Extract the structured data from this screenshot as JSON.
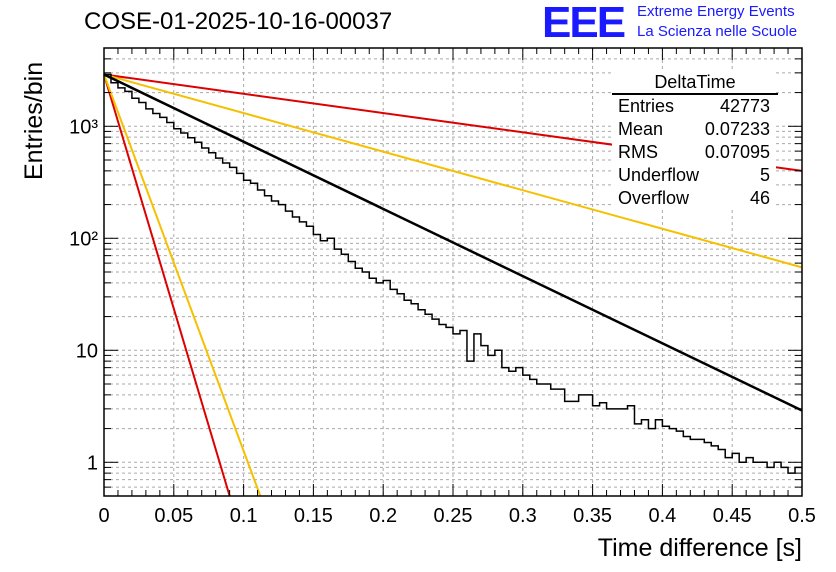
{
  "header": {
    "run_title": "COSE-01-2025-10-16-00037",
    "logo_text": "EEE",
    "logo_line1": "Extreme Energy Events",
    "logo_line2": "La Scienza nelle Scuole"
  },
  "stats_box": {
    "title": "DeltaTime",
    "rows": [
      {
        "label": "Entries",
        "value": "42773"
      },
      {
        "label": "Mean",
        "value": "0.07233"
      },
      {
        "label": "RMS",
        "value": "0.07095"
      },
      {
        "label": "Underflow",
        "value": "5"
      },
      {
        "label": "Overflow",
        "value": "46"
      }
    ]
  },
  "colors": {
    "histogram": "#000000",
    "fit": "#000000",
    "red_curve": "#dd0000",
    "orange_curve": "#f5c000",
    "grid": "#aaaaaa"
  },
  "chart_data": {
    "type": "line",
    "title": "COSE-01-2025-10-16-00037",
    "xlabel": "Time difference [s]",
    "ylabel": "Entries/bin",
    "xlim": [
      0,
      0.5
    ],
    "ylim": [
      0.5,
      5000
    ],
    "yscale": "log",
    "grid": true,
    "x_ticks": [
      0,
      0.05,
      0.1,
      0.15,
      0.2,
      0.25,
      0.3,
      0.35,
      0.4,
      0.45,
      0.5
    ],
    "x_tick_labels": [
      "0",
      "0.05",
      "0.1",
      "0.15",
      "0.2",
      "0.25",
      "0.3",
      "0.35",
      "0.4",
      "0.45",
      "0.5"
    ],
    "y_tick_labels": [
      {
        "value": 1,
        "label": "1"
      },
      {
        "value": 10,
        "label": "10"
      },
      {
        "value": 100,
        "label": "10²"
      },
      {
        "value": 1000,
        "label": "10³"
      }
    ],
    "histogram": {
      "name": "DeltaTime",
      "bin_width": 0.005,
      "counts": [
        2900,
        2450,
        2200,
        2050,
        1780,
        1630,
        1430,
        1300,
        1200,
        1080,
        950,
        870,
        790,
        720,
        640,
        580,
        520,
        470,
        430,
        380,
        330,
        310,
        270,
        240,
        215,
        200,
        175,
        155,
        140,
        128,
        108,
        95,
        100,
        80,
        72,
        62,
        54,
        50,
        44,
        40,
        42,
        35,
        32,
        28,
        26,
        23,
        21,
        19,
        17,
        16,
        14,
        15,
        8,
        14,
        11,
        9,
        10,
        7,
        6.5,
        7,
        6,
        5.5,
        5,
        5,
        4.5,
        4.5,
        3.5,
        3.5,
        4,
        4,
        3.2,
        3.4,
        3.0,
        3.0,
        3.0,
        3.2,
        2.2,
        2.4,
        2.0,
        2.4,
        2.1,
        2.0,
        1.9,
        1.7,
        1.6,
        1.6,
        1.5,
        1.4,
        1.3,
        1.1,
        1.2,
        1.0,
        1.1,
        1.0,
        1.0,
        0.9,
        1.0,
        0.9,
        0.8,
        0.9
      ]
    },
    "series": [
      {
        "name": "exponential fit",
        "color": "#000000",
        "x": [
          0,
          0.5
        ],
        "y": [
          2900,
          2.9
        ]
      },
      {
        "name": "red steep",
        "color": "#dd0000",
        "x": [
          0,
          0.09
        ],
        "y": [
          2900,
          0.5
        ]
      },
      {
        "name": "red shallow",
        "color": "#dd0000",
        "x": [
          0,
          0.5
        ],
        "y": [
          2900,
          400
        ]
      },
      {
        "name": "orange steep",
        "color": "#f5c000",
        "x": [
          0,
          0.112
        ],
        "y": [
          2900,
          0.5
        ]
      },
      {
        "name": "orange shallow",
        "color": "#f5c000",
        "x": [
          0,
          0.5
        ],
        "y": [
          2900,
          55
        ]
      }
    ]
  }
}
